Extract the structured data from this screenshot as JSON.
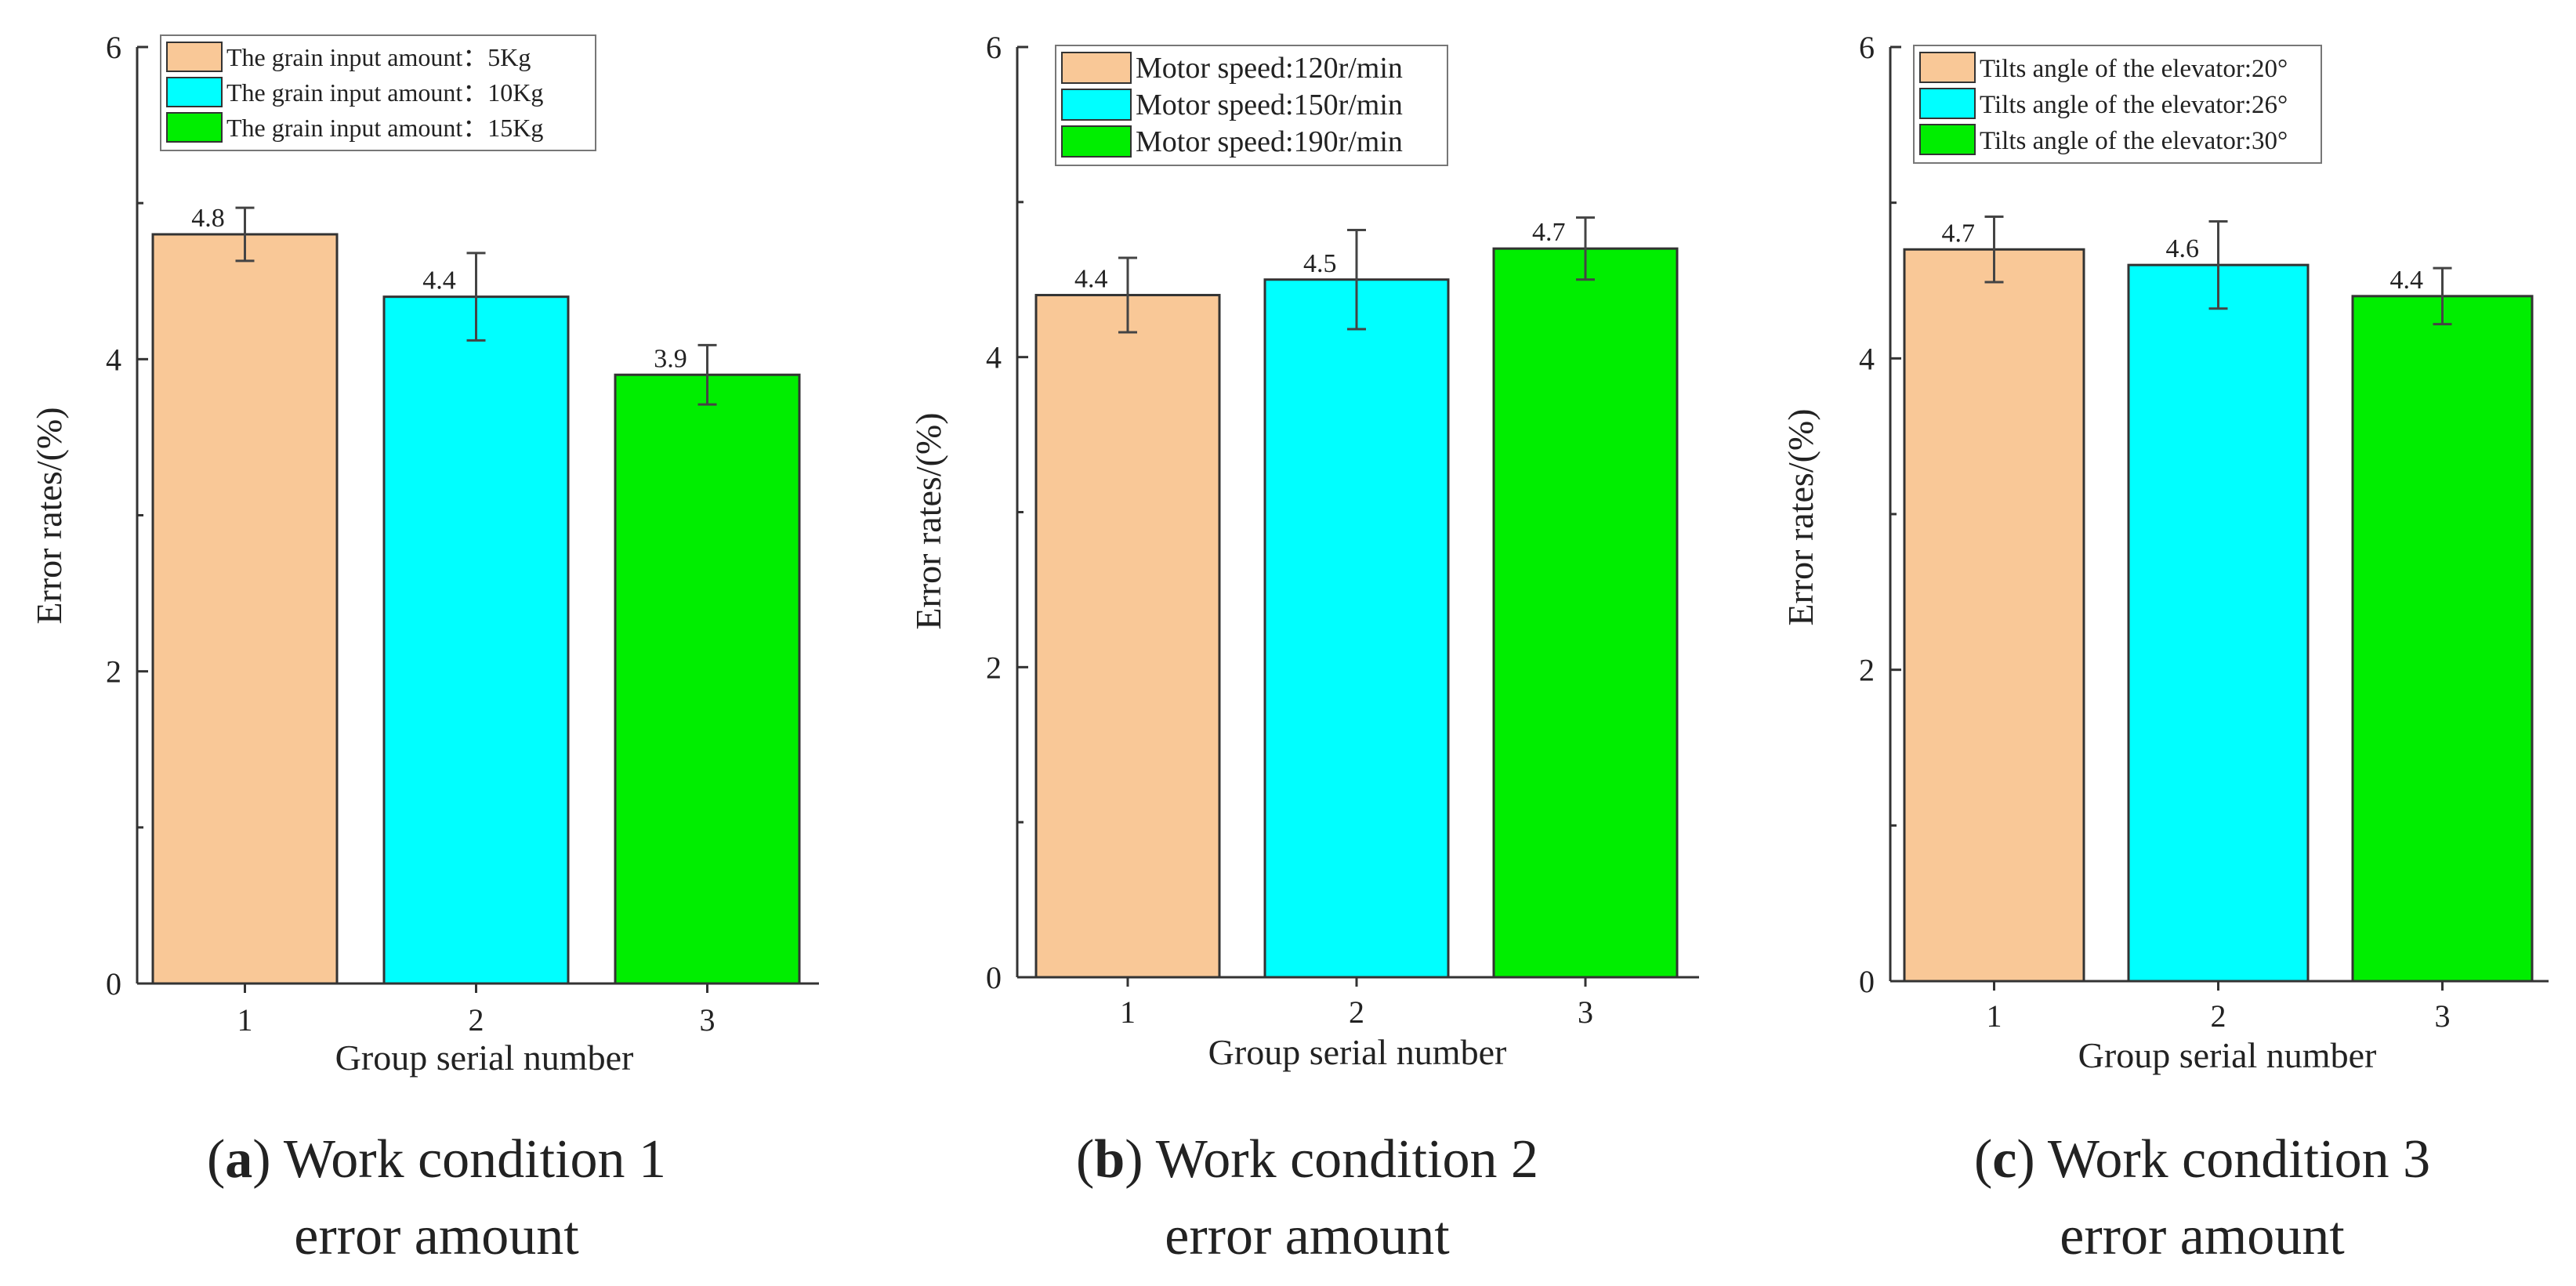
{
  "chart_data": [
    {
      "type": "bar",
      "title": "",
      "xlabel": "Group serial number",
      "ylabel": "Error rates/(%)",
      "ylim": [
        0,
        6
      ],
      "yticks": [
        "0",
        "2",
        "4",
        "6"
      ],
      "categories": [
        "1",
        "2",
        "3"
      ],
      "values": [
        4.8,
        4.4,
        3.9
      ],
      "errors": [
        0.17,
        0.28,
        0.19
      ],
      "data_labels": [
        "4.8",
        "4.4",
        "3.9"
      ],
      "legend": [
        "The grain input amount：5Kg",
        "The grain input amount：10Kg",
        "The grain input amount：15Kg"
      ],
      "colors": [
        "#f9c897",
        "#00ffff",
        "#00ee00"
      ],
      "caption": {
        "letter": "a",
        "text": ") Work condition 1",
        "line2": "error amount"
      }
    },
    {
      "type": "bar",
      "title": "",
      "xlabel": "Group serial number",
      "ylabel": "Error rates/(%)",
      "ylim": [
        0,
        6
      ],
      "yticks": [
        "0",
        "2",
        "4",
        "6"
      ],
      "categories": [
        "1",
        "2",
        "3"
      ],
      "values": [
        4.4,
        4.5,
        4.7
      ],
      "errors": [
        0.24,
        0.32,
        0.2
      ],
      "data_labels": [
        "4.4",
        "4.5",
        "4.7"
      ],
      "legend": [
        "Motor speed:120r/min",
        "Motor speed:150r/min",
        "Motor speed:190r/min"
      ],
      "colors": [
        "#f9c897",
        "#00ffff",
        "#00ee00"
      ],
      "caption": {
        "letter": "b",
        "text": ") Work condition 2",
        "line2": "error amount"
      }
    },
    {
      "type": "bar",
      "title": "",
      "xlabel": "Group serial number",
      "ylabel": "Error rates/(%)",
      "ylim": [
        0,
        6
      ],
      "yticks": [
        "0",
        "2",
        "4",
        "6"
      ],
      "categories": [
        "1",
        "2",
        "3"
      ],
      "values": [
        4.7,
        4.6,
        4.4
      ],
      "errors": [
        0.21,
        0.28,
        0.18
      ],
      "data_labels": [
        "4.7",
        "4.6",
        "4.4"
      ],
      "legend": [
        "Tilts angle of the elevator:20°",
        "Tilts angle of the elevator:26°",
        "Tilts angle of the elevator:30°"
      ],
      "colors": [
        "#f9c897",
        "#00ffff",
        "#00ee00"
      ],
      "caption": {
        "letter": "c",
        "text": ") Work condition 3",
        "line2": "error amount"
      }
    }
  ]
}
